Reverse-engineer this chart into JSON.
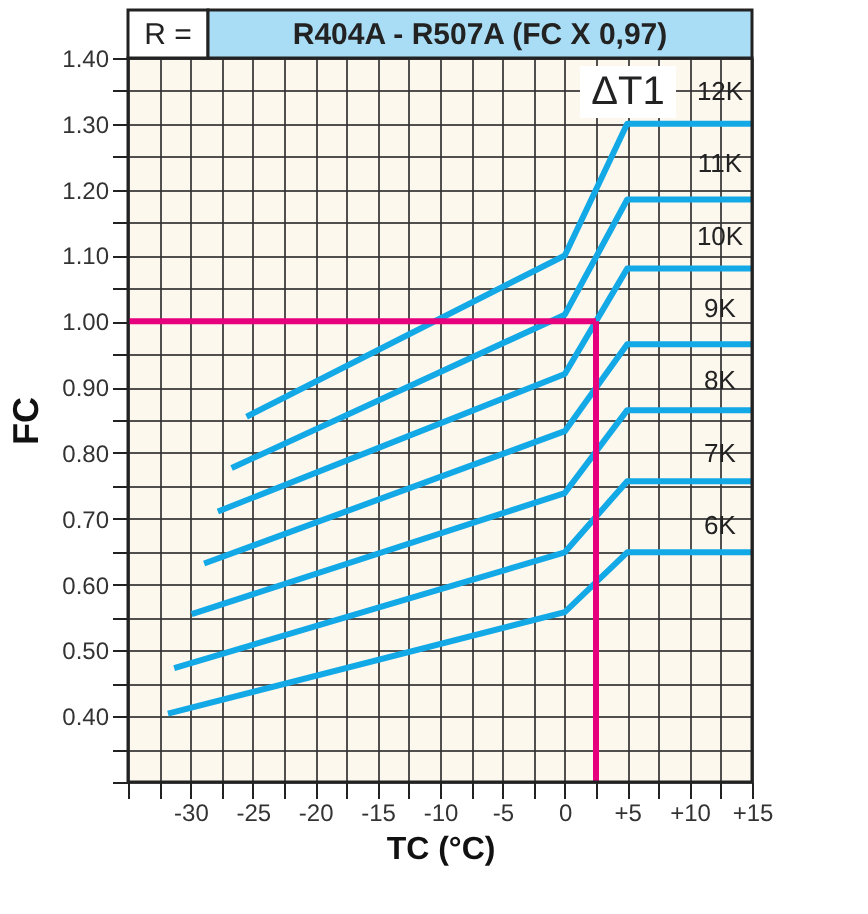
{
  "chart_data": {
    "type": "line",
    "title": "R404A  -  R507A (FC X 0,97)",
    "xlabel": "TC (°C)",
    "ylabel": "FC",
    "xlim": [
      -35,
      15
    ],
    "ylim": [
      0.3,
      1.4
    ],
    "xticks": [
      {
        "value": -35,
        "label": null
      },
      {
        "value": -32.5,
        "label": null
      },
      -30,
      {
        "value": -27.5,
        "label": null
      },
      -25,
      {
        "value": -22.5,
        "label": null
      },
      -20,
      {
        "value": -17.5,
        "label": null
      },
      -15,
      {
        "value": -12.5,
        "label": null
      },
      -10,
      {
        "value": -7.5,
        "label": null
      },
      -5,
      {
        "value": -2.5,
        "label": null
      },
      0,
      {
        "value": 2.5,
        "label": null
      },
      {
        "value": 5,
        "label": "+5"
      },
      {
        "value": 7.5,
        "label": null
      },
      {
        "value": 10,
        "label": "+10"
      },
      {
        "value": 12.5,
        "label": null
      },
      {
        "value": 15,
        "label": "+15"
      }
    ],
    "yticks": [
      {
        "value": 0.3,
        "label": null
      },
      {
        "value": 0.35,
        "label": null
      },
      {
        "value": 0.4,
        "label": "0.40"
      },
      {
        "value": 0.45,
        "label": null
      },
      {
        "value": 0.5,
        "label": "0.50"
      },
      {
        "value": 0.55,
        "label": null
      },
      {
        "value": 0.6,
        "label": "0.60"
      },
      {
        "value": 0.65,
        "label": null
      },
      {
        "value": 0.7,
        "label": "0.70"
      },
      {
        "value": 0.75,
        "label": null
      },
      {
        "value": 0.8,
        "label": "0.80"
      },
      {
        "value": 0.85,
        "label": null
      },
      {
        "value": 0.9,
        "label": "0.90"
      },
      {
        "value": 0.95,
        "label": null
      },
      {
        "value": 1.0,
        "label": "1.00"
      },
      {
        "value": 1.05,
        "label": null
      },
      {
        "value": 1.1,
        "label": "1.10"
      },
      {
        "value": 1.15,
        "label": null
      },
      {
        "value": 1.2,
        "label": "1.20"
      },
      {
        "value": 1.25,
        "label": null
      },
      {
        "value": 1.3,
        "label": "1.30"
      },
      {
        "value": 1.35,
        "label": null
      },
      {
        "value": 1.4,
        "label": "1.40"
      }
    ],
    "grid": true,
    "legend": false,
    "marker": "none",
    "line_style": "solid",
    "series": [
      {
        "color": "#12a9e6",
        "x": [
          -25.5,
          0,
          5,
          15
        ],
        "values": [
          0.855,
          1.1,
          1.3,
          1.3
        ]
      },
      {
        "color": "#12a9e6",
        "x": [
          -26.7,
          0,
          5,
          15
        ],
        "values": [
          0.777,
          1.01,
          1.185,
          1.185
        ]
      },
      {
        "color": "#12a9e6",
        "x": [
          -27.8,
          0,
          5,
          15
        ],
        "values": [
          0.711,
          0.92,
          1.08,
          1.08
        ]
      },
      {
        "color": "#12a9e6",
        "x": [
          -28.9,
          0,
          5,
          15
        ],
        "values": [
          0.632,
          0.833,
          0.965,
          0.965
        ]
      },
      {
        "color": "#12a9e6",
        "x": [
          -29.9,
          0,
          5,
          15
        ],
        "values": [
          0.555,
          0.739,
          0.865,
          0.865
        ]
      },
      {
        "color": "#12a9e6",
        "x": [
          -31.3,
          0,
          5,
          15
        ],
        "values": [
          0.473,
          0.649,
          0.757,
          0.757
        ]
      },
      {
        "color": "#12a9e6",
        "x": [
          -31.8,
          0,
          5,
          15
        ],
        "values": [
          0.404,
          0.558,
          0.649,
          0.649
        ]
      }
    ],
    "ref_lines": [
      {
        "axis": "y",
        "value": 1.0,
        "color": "#e6007e"
      },
      {
        "axis": "x",
        "value": 2.5,
        "color": "#e6007e"
      }
    ],
    "annotations": [
      "R =",
      "ΔT1",
      "12K",
      "11K",
      "10K",
      "9K",
      "8K",
      "7K",
      "6K"
    ]
  }
}
